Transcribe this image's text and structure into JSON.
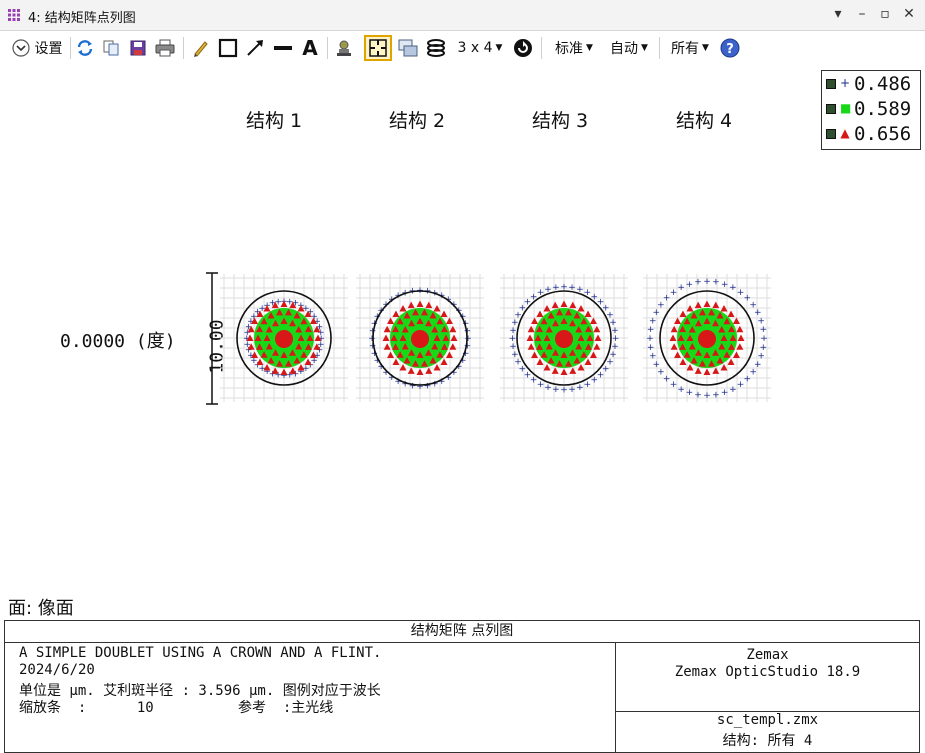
{
  "window": {
    "title": "4: 结构矩阵点列图"
  },
  "toolbar": {
    "settings_label": "设置",
    "grid_label": "3 x 4",
    "standard_label": "标准",
    "auto_label": "自动",
    "all_label": "所有"
  },
  "legend": {
    "items": [
      {
        "symbol": "+",
        "color": "#1a2a8a",
        "value": "0.486"
      },
      {
        "symbol": "■",
        "color": "#18d818",
        "value": "0.589"
      },
      {
        "symbol": "▲",
        "color": "#d81818",
        "value": "0.656"
      }
    ]
  },
  "plot": {
    "configs": [
      "结构 1",
      "结构 2",
      "结构 3",
      "结构 4"
    ],
    "field_label": "0.0000 (度)",
    "scale_label": "10.00"
  },
  "spot_data": {
    "airy_radius_um": 3.596,
    "scale_bar_um": 10,
    "configs": [
      {
        "config": 1,
        "blue_ring_fraction": 0.62
      },
      {
        "config": 2,
        "blue_ring_fraction": 0.8
      },
      {
        "config": 3,
        "blue_ring_fraction": 0.86
      },
      {
        "config": 4,
        "blue_ring_fraction": 0.95
      }
    ]
  },
  "surface": "面: 像面",
  "footer": {
    "header": "结构矩阵 点列图",
    "line1": "A SIMPLE DOUBLET USING A CROWN AND A FLINT.",
    "line2": "2024/6/20",
    "line3": "单位是 μm. 艾利斑半径 : 3.596 μm. 图例对应于波长",
    "line4": "缩放条  :      10          参考  :主光线",
    "company": "Zemax",
    "product": "Zemax OpticStudio 18.9",
    "file": "sc_templ.zmx",
    "config": "结构: 所有 4"
  }
}
